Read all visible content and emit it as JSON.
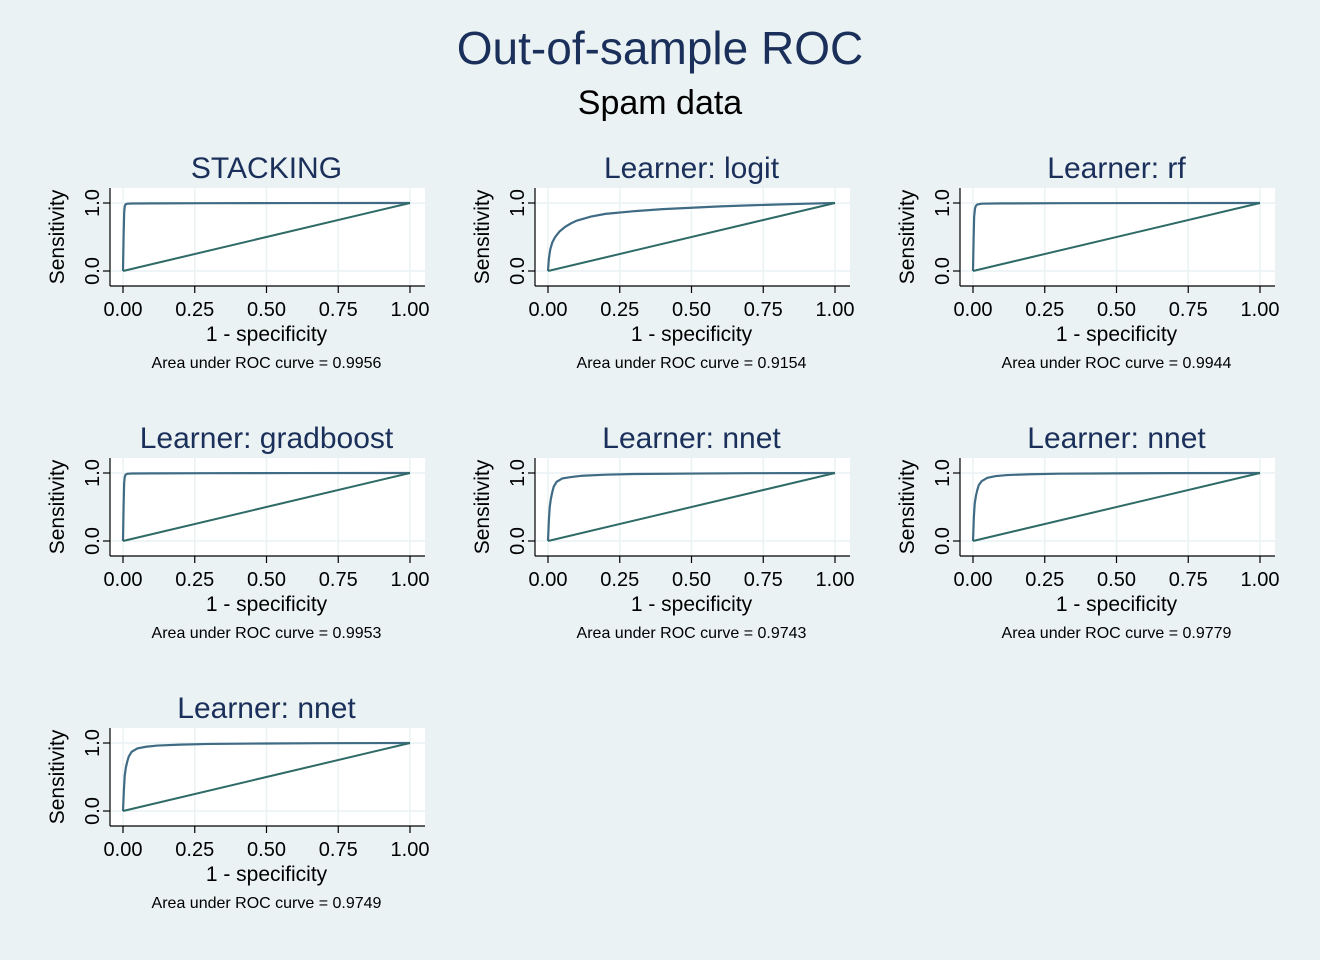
{
  "title": "Out-of-sample ROC",
  "subtitle": "Spam data",
  "chart_data": [
    {
      "type": "line",
      "title": "STACKING",
      "xlabel": "1 - specificity",
      "ylabel": "Sensitivity",
      "xlim": [
        0,
        1
      ],
      "ylim": [
        0,
        1
      ],
      "xticks": [
        "0.00",
        "0.25",
        "0.50",
        "0.75",
        "1.00"
      ],
      "yticks": [
        "0.0",
        "1.0"
      ],
      "note": "Area under ROC curve = 0.9956",
      "series": [
        {
          "x": [
            0,
            0.002,
            0.004,
            0.006,
            0.009,
            0.015,
            0.03,
            0.1,
            0.3,
            0.6,
            1
          ],
          "y": [
            0,
            0.5,
            0.85,
            0.95,
            0.98,
            0.99,
            0.993,
            0.995,
            0.997,
            0.999,
            1
          ]
        },
        {
          "x": [
            0,
            1
          ],
          "y": [
            0,
            1
          ]
        }
      ]
    },
    {
      "type": "line",
      "title": "Learner: logit",
      "xlabel": "1 - specificity",
      "ylabel": "Sensitivity",
      "xlim": [
        0,
        1
      ],
      "ylim": [
        0,
        1
      ],
      "xticks": [
        "0.00",
        "0.25",
        "0.50",
        "0.75",
        "1.00"
      ],
      "yticks": [
        "0.0",
        "1.0"
      ],
      "note": "Area under ROC curve = 0.9154",
      "series": [
        {
          "x": [
            0,
            0.003,
            0.008,
            0.015,
            0.025,
            0.04,
            0.06,
            0.08,
            0.1,
            0.15,
            0.2,
            0.3,
            0.4,
            0.5,
            0.6,
            0.7,
            0.8,
            0.9,
            1
          ],
          "y": [
            0,
            0.18,
            0.32,
            0.42,
            0.5,
            0.58,
            0.65,
            0.7,
            0.74,
            0.8,
            0.84,
            0.88,
            0.91,
            0.93,
            0.95,
            0.965,
            0.978,
            0.99,
            1
          ]
        },
        {
          "x": [
            0,
            1
          ],
          "y": [
            0,
            1
          ]
        }
      ]
    },
    {
      "type": "line",
      "title": "Learner: rf",
      "xlabel": "1 - specificity",
      "ylabel": "Sensitivity",
      "xlim": [
        0,
        1
      ],
      "ylim": [
        0,
        1
      ],
      "xticks": [
        "0.00",
        "0.25",
        "0.50",
        "0.75",
        "1.00"
      ],
      "yticks": [
        "0.0",
        "1.0"
      ],
      "note": "Area under ROC curve = 0.9944",
      "series": [
        {
          "x": [
            0,
            0.002,
            0.004,
            0.007,
            0.01,
            0.016,
            0.03,
            0.1,
            0.3,
            0.6,
            1
          ],
          "y": [
            0,
            0.45,
            0.8,
            0.92,
            0.96,
            0.98,
            0.99,
            0.994,
            0.997,
            0.999,
            1
          ]
        },
        {
          "x": [
            0,
            1
          ],
          "y": [
            0,
            1
          ]
        }
      ]
    },
    {
      "type": "line",
      "title": "Learner: gradboost",
      "xlabel": "1 - specificity",
      "ylabel": "Sensitivity",
      "xlim": [
        0,
        1
      ],
      "ylim": [
        0,
        1
      ],
      "xticks": [
        "0.00",
        "0.25",
        "0.50",
        "0.75",
        "1.00"
      ],
      "yticks": [
        "0.0",
        "1.0"
      ],
      "note": "Area under ROC curve = 0.9953",
      "series": [
        {
          "x": [
            0,
            0.002,
            0.004,
            0.006,
            0.009,
            0.015,
            0.03,
            0.1,
            0.3,
            0.6,
            1
          ],
          "y": [
            0,
            0.5,
            0.85,
            0.94,
            0.975,
            0.988,
            0.993,
            0.995,
            0.997,
            0.999,
            1
          ]
        },
        {
          "x": [
            0,
            1
          ],
          "y": [
            0,
            1
          ]
        }
      ]
    },
    {
      "type": "line",
      "title": "Learner: nnet",
      "xlabel": "1 - specificity",
      "ylabel": "Sensitivity",
      "xlim": [
        0,
        1
      ],
      "ylim": [
        0,
        1
      ],
      "xticks": [
        "0.00",
        "0.25",
        "0.50",
        "0.75",
        "1.00"
      ],
      "yticks": [
        "0.0",
        "1.0"
      ],
      "note": "Area under ROC curve = 0.9743",
      "series": [
        {
          "x": [
            0,
            0.003,
            0.006,
            0.01,
            0.015,
            0.02,
            0.03,
            0.05,
            0.08,
            0.12,
            0.2,
            0.3,
            0.5,
            0.7,
            1
          ],
          "y": [
            0,
            0.3,
            0.5,
            0.62,
            0.72,
            0.8,
            0.87,
            0.92,
            0.94,
            0.96,
            0.975,
            0.985,
            0.992,
            0.997,
            1
          ]
        },
        {
          "x": [
            0,
            1
          ],
          "y": [
            0,
            1
          ]
        }
      ]
    },
    {
      "type": "line",
      "title": "Learner: nnet",
      "xlabel": "1 - specificity",
      "ylabel": "Sensitivity",
      "xlim": [
        0,
        1
      ],
      "ylim": [
        0,
        1
      ],
      "xticks": [
        "0.00",
        "0.25",
        "0.50",
        "0.75",
        "1.00"
      ],
      "yticks": [
        "0.0",
        "1.0"
      ],
      "note": "Area under ROC curve = 0.9779",
      "series": [
        {
          "x": [
            0,
            0.003,
            0.006,
            0.01,
            0.015,
            0.02,
            0.03,
            0.05,
            0.08,
            0.12,
            0.2,
            0.3,
            0.5,
            0.7,
            1
          ],
          "y": [
            0,
            0.35,
            0.55,
            0.66,
            0.75,
            0.82,
            0.88,
            0.93,
            0.955,
            0.97,
            0.982,
            0.99,
            0.995,
            0.998,
            1
          ]
        },
        {
          "x": [
            0,
            1
          ],
          "y": [
            0,
            1
          ]
        }
      ]
    },
    {
      "type": "line",
      "title": "Learner: nnet",
      "xlabel": "1 - specificity",
      "ylabel": "Sensitivity",
      "xlim": [
        0,
        1
      ],
      "ylim": [
        0,
        1
      ],
      "xticks": [
        "0.00",
        "0.25",
        "0.50",
        "0.75",
        "1.00"
      ],
      "yticks": [
        "0.0",
        "1.0"
      ],
      "note": "Area under ROC curve = 0.9749",
      "series": [
        {
          "x": [
            0,
            0.003,
            0.006,
            0.01,
            0.015,
            0.02,
            0.03,
            0.05,
            0.08,
            0.12,
            0.2,
            0.3,
            0.5,
            0.7,
            1
          ],
          "y": [
            0,
            0.3,
            0.52,
            0.64,
            0.73,
            0.8,
            0.87,
            0.92,
            0.945,
            0.962,
            0.976,
            0.986,
            0.993,
            0.997,
            1
          ]
        },
        {
          "x": [
            0,
            1
          ],
          "y": [
            0,
            1
          ]
        }
      ]
    }
  ]
}
